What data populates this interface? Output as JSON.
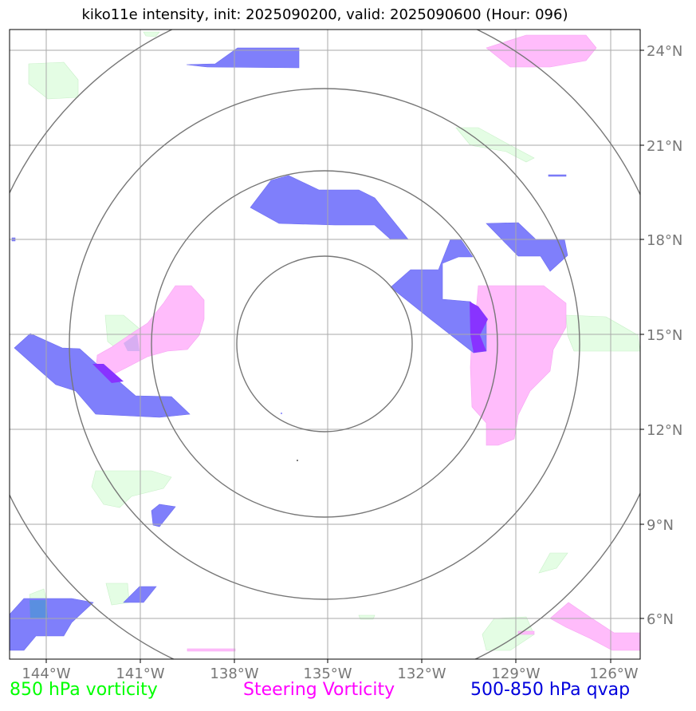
{
  "title": "kiko11e intensity, init: 2025090200, valid: 2025090600 (Hour: 096)",
  "legend": {
    "vort850": {
      "label": "850 hPa vorticity",
      "color": "#00ff00"
    },
    "steering": {
      "label": "Steering Vorticity",
      "color": "#ff00ff"
    },
    "qvap": {
      "label": "500-850 hPa qvap",
      "color": "#0000dd"
    }
  },
  "axes": {
    "lon_ticks": [
      "144°W",
      "141°W",
      "138°W",
      "135°W",
      "132°W",
      "129°W",
      "126°W"
    ],
    "lat_ticks": [
      "24°N",
      "21°N",
      "18°N",
      "15°N",
      "12°N",
      "9°N",
      "6°N"
    ]
  },
  "colors": {
    "qvap_fill": "#7f7ffb",
    "vort_fill": "#e4fde4",
    "steer_fill": "#ffbcfb",
    "grid": "#aaaaaa",
    "rings": "#777777",
    "tick_label": "#777777"
  }
}
